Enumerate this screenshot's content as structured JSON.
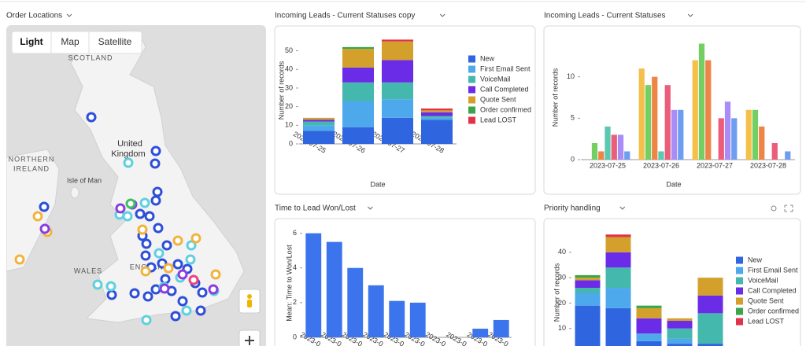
{
  "map": {
    "title": "Order Locations",
    "styles": [
      "Light",
      "Map",
      "Satellite"
    ],
    "labels": [
      "SCOTLAND",
      "United",
      "Kingdom",
      "NORTHERN",
      "IRELAND",
      "Isle of Man",
      "WALES",
      "ENGLAND"
    ]
  },
  "chart_data": [
    {
      "type": "stacked_bar",
      "title": "Incoming Leads - Current Statuses copy",
      "ylabel": "Number of records",
      "xlabel": "Date",
      "categories": [
        "2023-07-25",
        "2023-07-26",
        "2023-07-27",
        "2023-07-28"
      ],
      "series": [
        {
          "name": "New",
          "color": "#2f66e0",
          "values": [
            7,
            9,
            14,
            13
          ]
        },
        {
          "name": "First Email Sent",
          "color": "#4ea8ec",
          "values": [
            3,
            14,
            10,
            1
          ]
        },
        {
          "name": "VoiceMail",
          "color": "#45b8ad",
          "values": [
            2,
            10,
            9,
            1
          ]
        },
        {
          "name": "Call Completed",
          "color": "#6a2ce6",
          "values": [
            1,
            8,
            12,
            2
          ]
        },
        {
          "name": "Quote Sent",
          "color": "#d4a02c",
          "values": [
            1,
            10,
            10,
            1
          ]
        },
        {
          "name": "Order confirmed",
          "color": "#3aa64a",
          "values": [
            0,
            1,
            0,
            0
          ]
        },
        {
          "name": "Lead LOST",
          "color": "#e0334a",
          "values": [
            0,
            0,
            1,
            1
          ]
        }
      ],
      "ylim": [
        0,
        57
      ],
      "yticks": [
        0,
        10,
        20,
        30,
        40,
        50
      ],
      "legend": "right"
    },
    {
      "type": "grouped_bar",
      "title": "Incoming Leads - Current Statuses",
      "ylabel": "Number of records",
      "xlabel": "Date",
      "categories": [
        "2023-07-25",
        "2023-07-26",
        "2023-07-27",
        "2023-07-28"
      ],
      "series": [
        {
          "color": "#f5c04a",
          "values": [
            0,
            11,
            12,
            6
          ]
        },
        {
          "color": "#74cf62",
          "values": [
            2,
            9,
            14,
            6
          ]
        },
        {
          "color": "#ef8447",
          "values": [
            1,
            10,
            12,
            4
          ]
        },
        {
          "color": "#5cc8b0",
          "values": [
            4,
            1,
            0,
            0
          ]
        },
        {
          "color": "#ec5d7c",
          "values": [
            3,
            9,
            5,
            2
          ]
        },
        {
          "color": "#a98cf5",
          "values": [
            3,
            6,
            7,
            0
          ]
        },
        {
          "color": "#6f9ef0",
          "values": [
            1,
            6,
            5,
            1
          ]
        }
      ],
      "ylim": [
        0,
        15
      ],
      "yticks": [
        0,
        5,
        10
      ]
    },
    {
      "type": "bar",
      "title": "Time to Lead Won/Lost",
      "ylabel": "Mean: Time to Won/Lost",
      "categories": [
        "2023-0",
        "2023-0",
        "2023-0",
        "2023-0",
        "2023-0",
        "2023-0",
        "2023-0",
        "2023-0",
        "2023-0",
        "2023-0"
      ],
      "values": [
        6,
        5.5,
        4,
        3,
        2.1,
        2,
        0,
        0,
        0.5,
        1
      ],
      "color": "#3b74ec",
      "ylim": [
        0,
        6.3
      ],
      "yticks": [
        0,
        2,
        4,
        6
      ]
    },
    {
      "type": "stacked_bar",
      "title": "Priority handling",
      "ylabel": "Number of records",
      "categories": [
        null,
        null,
        null,
        null,
        null
      ],
      "series": [
        {
          "name": "New",
          "color": "#2f66e0",
          "values": [
            19,
            18,
            5,
            4,
            4
          ]
        },
        {
          "name": "First Email Sent",
          "color": "#4ea8ec",
          "values": [
            5,
            8,
            3,
            2,
            0
          ]
        },
        {
          "name": "VoiceMail",
          "color": "#45b8ad",
          "values": [
            2,
            8,
            0,
            4,
            12
          ]
        },
        {
          "name": "Call Completed",
          "color": "#6a2ce6",
          "values": [
            3,
            6,
            6,
            3,
            7
          ]
        },
        {
          "name": "Quote Sent",
          "color": "#d4a02c",
          "values": [
            1,
            6,
            4,
            1,
            7
          ]
        },
        {
          "name": "Order confirmed",
          "color": "#3aa64a",
          "values": [
            1,
            0,
            1,
            0,
            0
          ]
        },
        {
          "name": "Lead LOST",
          "color": "#e0334a",
          "values": [
            0,
            1,
            0,
            0,
            0
          ]
        }
      ],
      "ylim": [
        0,
        48
      ],
      "yticks": [
        10,
        20,
        30,
        40
      ],
      "legend": "right"
    }
  ]
}
